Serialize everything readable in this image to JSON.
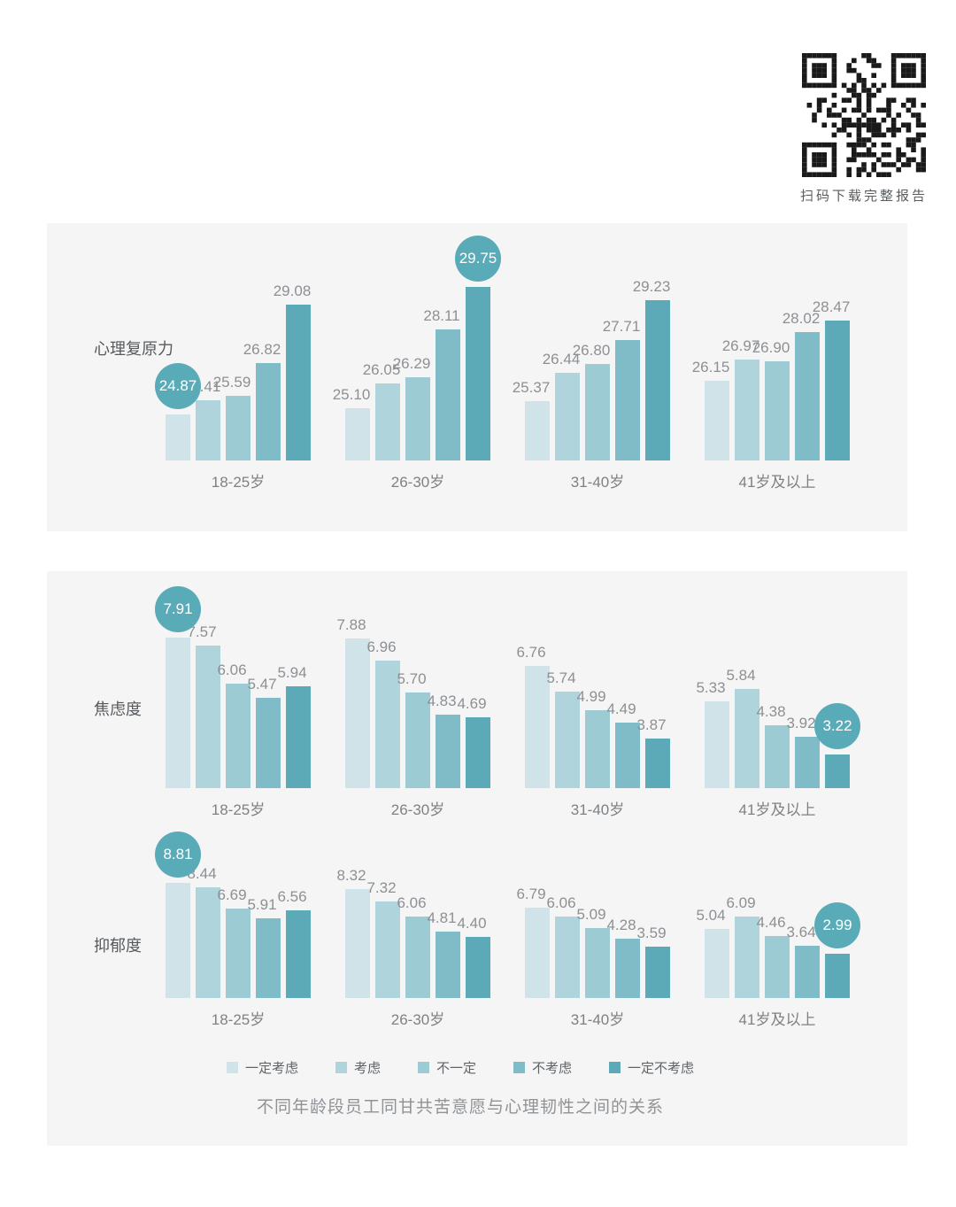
{
  "qr": {
    "caption": "扫码下载完整报告"
  },
  "palette": {
    "series": [
      "#cfe3e8",
      "#b0d4dc",
      "#9ccbd4",
      "#7fbcc7",
      "#5caab8"
    ],
    "highlight_circle": "#5aabb8",
    "panel_background": "#f5f5f6",
    "value_label": "#8d9093",
    "qr_black": "#1a1a1a"
  },
  "legend": {
    "items": [
      "一定考虑",
      "考虑",
      "不一定",
      "不考虑",
      "一定不考虑"
    ]
  },
  "title": "不同年龄段员工同甘共苦意愿与心理韧性之间的关系",
  "chart_data": [
    {
      "id": "resilience",
      "type": "bar",
      "row_label": "心理复原力",
      "categories": [
        "18-25岁",
        "26-30岁",
        "31-40岁",
        "41岁及以上"
      ],
      "series_names": [
        "一定考虑",
        "考虑",
        "不一定",
        "不考虑",
        "一定不考虑"
      ],
      "groups": [
        {
          "category": "18-25岁",
          "values": [
            24.87,
            25.41,
            25.59,
            26.82,
            29.08
          ]
        },
        {
          "category": "26-30岁",
          "values": [
            25.1,
            26.05,
            26.29,
            28.11,
            29.75
          ]
        },
        {
          "category": "31-40岁",
          "values": [
            25.37,
            26.44,
            26.8,
            27.71,
            29.23
          ]
        },
        {
          "category": "41岁及以上",
          "values": [
            26.15,
            26.97,
            26.9,
            28.02,
            28.47
          ]
        }
      ],
      "highlights": [
        {
          "group": 0,
          "series": 0
        },
        {
          "group": 1,
          "series": 4
        }
      ],
      "ylim": [
        23.1,
        30.2
      ],
      "grid": false,
      "legend_position": "bottom"
    },
    {
      "id": "anxiety",
      "type": "bar",
      "row_label": "焦虑度",
      "categories": [
        "18-25岁",
        "26-30岁",
        "31-40岁",
        "41岁及以上"
      ],
      "series_names": [
        "一定考虑",
        "考虑",
        "不一定",
        "不考虑",
        "一定不考虑"
      ],
      "groups": [
        {
          "category": "18-25岁",
          "values": [
            7.91,
            7.57,
            6.06,
            5.47,
            5.94
          ]
        },
        {
          "category": "26-30岁",
          "values": [
            7.88,
            6.96,
            5.7,
            4.83,
            4.69
          ]
        },
        {
          "category": "31-40岁",
          "values": [
            6.76,
            5.74,
            4.99,
            4.49,
            3.87
          ]
        },
        {
          "category": "41岁及以上",
          "values": [
            5.33,
            5.84,
            4.38,
            3.92,
            3.22
          ]
        }
      ],
      "highlights": [
        {
          "group": 0,
          "series": 0
        },
        {
          "group": 3,
          "series": 4
        }
      ],
      "ylim": [
        1.87,
        8.6
      ],
      "grid": false,
      "legend_position": "bottom"
    },
    {
      "id": "depression",
      "type": "bar",
      "row_label": "抑郁度",
      "categories": [
        "18-25岁",
        "26-30岁",
        "31-40岁",
        "41岁及以上"
      ],
      "series_names": [
        "一定考虑",
        "考虑",
        "不一定",
        "不考虑",
        "一定不考虑"
      ],
      "groups": [
        {
          "category": "18-25岁",
          "values": [
            8.81,
            8.44,
            6.69,
            5.91,
            6.56
          ]
        },
        {
          "category": "26-30岁",
          "values": [
            8.32,
            7.32,
            6.06,
            4.81,
            4.4
          ]
        },
        {
          "category": "31-40岁",
          "values": [
            6.79,
            6.06,
            5.09,
            4.28,
            3.59
          ]
        },
        {
          "category": "41岁及以上",
          "values": [
            5.04,
            6.09,
            4.46,
            3.64,
            2.99
          ]
        }
      ],
      "highlights": [
        {
          "group": 0,
          "series": 0
        },
        {
          "group": 3,
          "series": 4
        }
      ],
      "ylim": [
        -0.6,
        9.0
      ],
      "grid": false,
      "legend_position": "bottom"
    }
  ]
}
